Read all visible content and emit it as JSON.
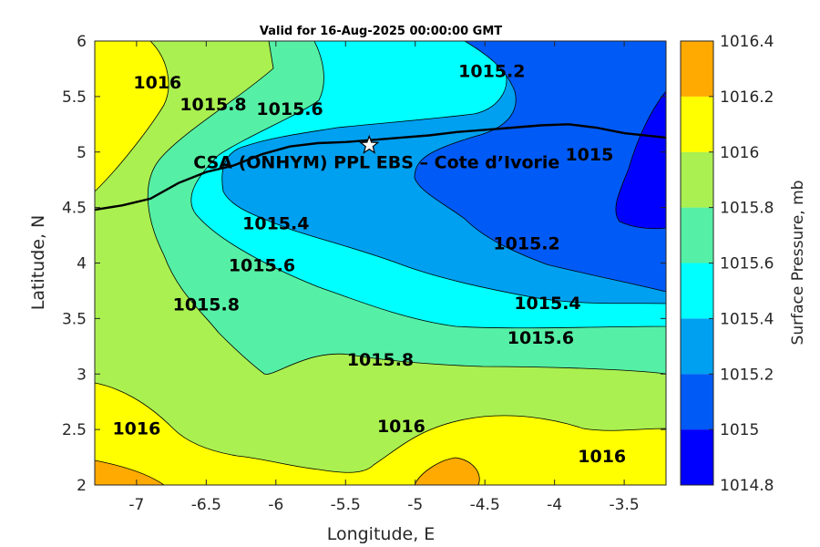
{
  "title": "Valid for 16-Aug-2025 00:00:00 GMT",
  "chart_data": {
    "type": "filled-contour-map",
    "xlabel": "Longitude, E",
    "ylabel": "Latitude, N",
    "xlim": [
      -7.3,
      -3.2
    ],
    "ylim": [
      2,
      6
    ],
    "xticks": [
      "-7",
      "-6.5",
      "-6",
      "-5.5",
      "-5",
      "-4.5",
      "-4",
      "-3.5"
    ],
    "xtick_values": [
      -7,
      -6.5,
      -6,
      -5.5,
      -5,
      -4.5,
      -4,
      -3.5
    ],
    "yticks": [
      "6",
      "5.5",
      "5",
      "4.5",
      "4",
      "3.5",
      "3",
      "2.5",
      "2"
    ],
    "ytick_values": [
      6,
      5.5,
      5,
      4.5,
      4,
      3.5,
      3,
      2.5,
      2
    ],
    "colorbar": {
      "label": "Surface Pressure, mb",
      "levels": [
        1014.8,
        1015.0,
        1015.2,
        1015.4,
        1015.6,
        1015.8,
        1016.0,
        1016.2,
        1016.4
      ],
      "ticks": [
        "1016.4",
        "1016.2",
        "1016",
        "1015.8",
        "1015.6",
        "1015.4",
        "1015.2",
        "1015",
        "1014.8"
      ],
      "colors": [
        "#0000ff",
        "#005af5",
        "#00a0f0",
        "#00ffff",
        "#55f0a5",
        "#aaf050",
        "#ffff00",
        "#ffaa00",
        "#ff5500"
      ]
    },
    "contour_labels": [
      {
        "text": "1016",
        "lon": -6.85,
        "lat": 5.62
      },
      {
        "text": "1015.8",
        "lon": -6.45,
        "lat": 5.42
      },
      {
        "text": "1015.6",
        "lon": -5.9,
        "lat": 5.38
      },
      {
        "text": "1015.2",
        "lon": -4.45,
        "lat": 5.72
      },
      {
        "text": "1015",
        "lon": -3.75,
        "lat": 4.97
      },
      {
        "text": "1015.4",
        "lon": -6.0,
        "lat": 4.35
      },
      {
        "text": "1015.2",
        "lon": -4.2,
        "lat": 4.17
      },
      {
        "text": "1015.6",
        "lon": -6.1,
        "lat": 3.97
      },
      {
        "text": "1015.4",
        "lon": -4.05,
        "lat": 3.63
      },
      {
        "text": "1015.8",
        "lon": -6.5,
        "lat": 3.62
      },
      {
        "text": "1015.6",
        "lon": -4.1,
        "lat": 3.32
      },
      {
        "text": "1015.8",
        "lon": -5.25,
        "lat": 3.12
      },
      {
        "text": "1016",
        "lon": -7.0,
        "lat": 2.5
      },
      {
        "text": "1016",
        "lon": -5.1,
        "lat": 2.52
      },
      {
        "text": "1016",
        "lon": -3.66,
        "lat": 2.25
      }
    ],
    "site": {
      "name": "CSA (ONHYM) PPL EBS  – Cote d’Ivorie",
      "lon": -5.33,
      "lat": 5.06,
      "marker": "star"
    },
    "coastline": [
      [
        -7.3,
        4.48
      ],
      [
        -7.1,
        4.52
      ],
      [
        -6.9,
        4.58
      ],
      [
        -6.7,
        4.72
      ],
      [
        -6.5,
        4.82
      ],
      [
        -6.3,
        4.88
      ],
      [
        -6.1,
        4.98
      ],
      [
        -5.9,
        5.05
      ],
      [
        -5.7,
        5.08
      ],
      [
        -5.5,
        5.09
      ],
      [
        -5.3,
        5.11
      ],
      [
        -5.1,
        5.13
      ],
      [
        -4.9,
        5.15
      ],
      [
        -4.7,
        5.18
      ],
      [
        -4.5,
        5.2
      ],
      [
        -4.3,
        5.22
      ],
      [
        -4.1,
        5.24
      ],
      [
        -3.9,
        5.25
      ],
      [
        -3.7,
        5.22
      ],
      [
        -3.5,
        5.17
      ],
      [
        -3.2,
        5.13
      ]
    ]
  }
}
